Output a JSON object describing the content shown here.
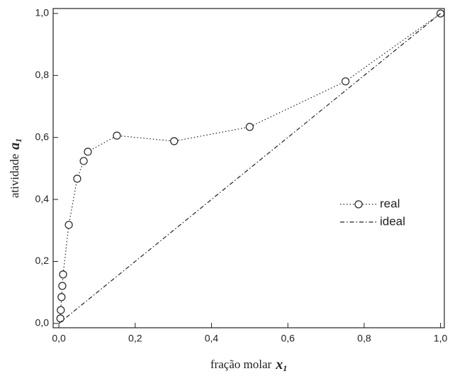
{
  "chart_data": {
    "type": "line",
    "xlabel": {
      "text": "fração molar",
      "symbol": "x",
      "subscript": "1"
    },
    "ylabel": {
      "text": "atividade",
      "symbol": "a",
      "subscript": "1"
    },
    "xlim": [
      -0.015,
      1.01
    ],
    "ylim": [
      -0.014,
      1.016
    ],
    "xticks": [
      {
        "value": 0,
        "label": "0,0"
      },
      {
        "value": 0.2,
        "label": "0,2"
      },
      {
        "value": 0.4,
        "label": "0,4"
      },
      {
        "value": 0.6,
        "label": "0,6"
      },
      {
        "value": 0.8,
        "label": "0,8"
      },
      {
        "value": 1,
        "label": "1,0"
      }
    ],
    "yticks": [
      {
        "value": 0,
        "label": "0,0"
      },
      {
        "value": 0.2,
        "label": "0,2"
      },
      {
        "value": 0.4,
        "label": "0,4"
      },
      {
        "value": 0.6,
        "label": "0,6"
      },
      {
        "value": 0.8,
        "label": "0,8"
      },
      {
        "value": 1,
        "label": "1,0"
      }
    ],
    "legend_position": "right",
    "series": [
      {
        "name": "real",
        "color": "#222222",
        "line_style": "dotted",
        "marker": "circle",
        "x": [
          0.004,
          0.005,
          0.007,
          0.009,
          0.011,
          0.026,
          0.048,
          0.065,
          0.076,
          0.152,
          0.302,
          0.5,
          0.751,
          1.0
        ],
        "values": [
          0.016,
          0.043,
          0.085,
          0.121,
          0.158,
          0.318,
          0.467,
          0.524,
          0.554,
          0.606,
          0.588,
          0.634,
          0.781,
          1.0
        ]
      },
      {
        "name": "ideal",
        "color": "#222222",
        "line_style": "dashdot",
        "marker": "none",
        "x": [
          0,
          1
        ],
        "values": [
          0,
          1
        ]
      }
    ]
  }
}
